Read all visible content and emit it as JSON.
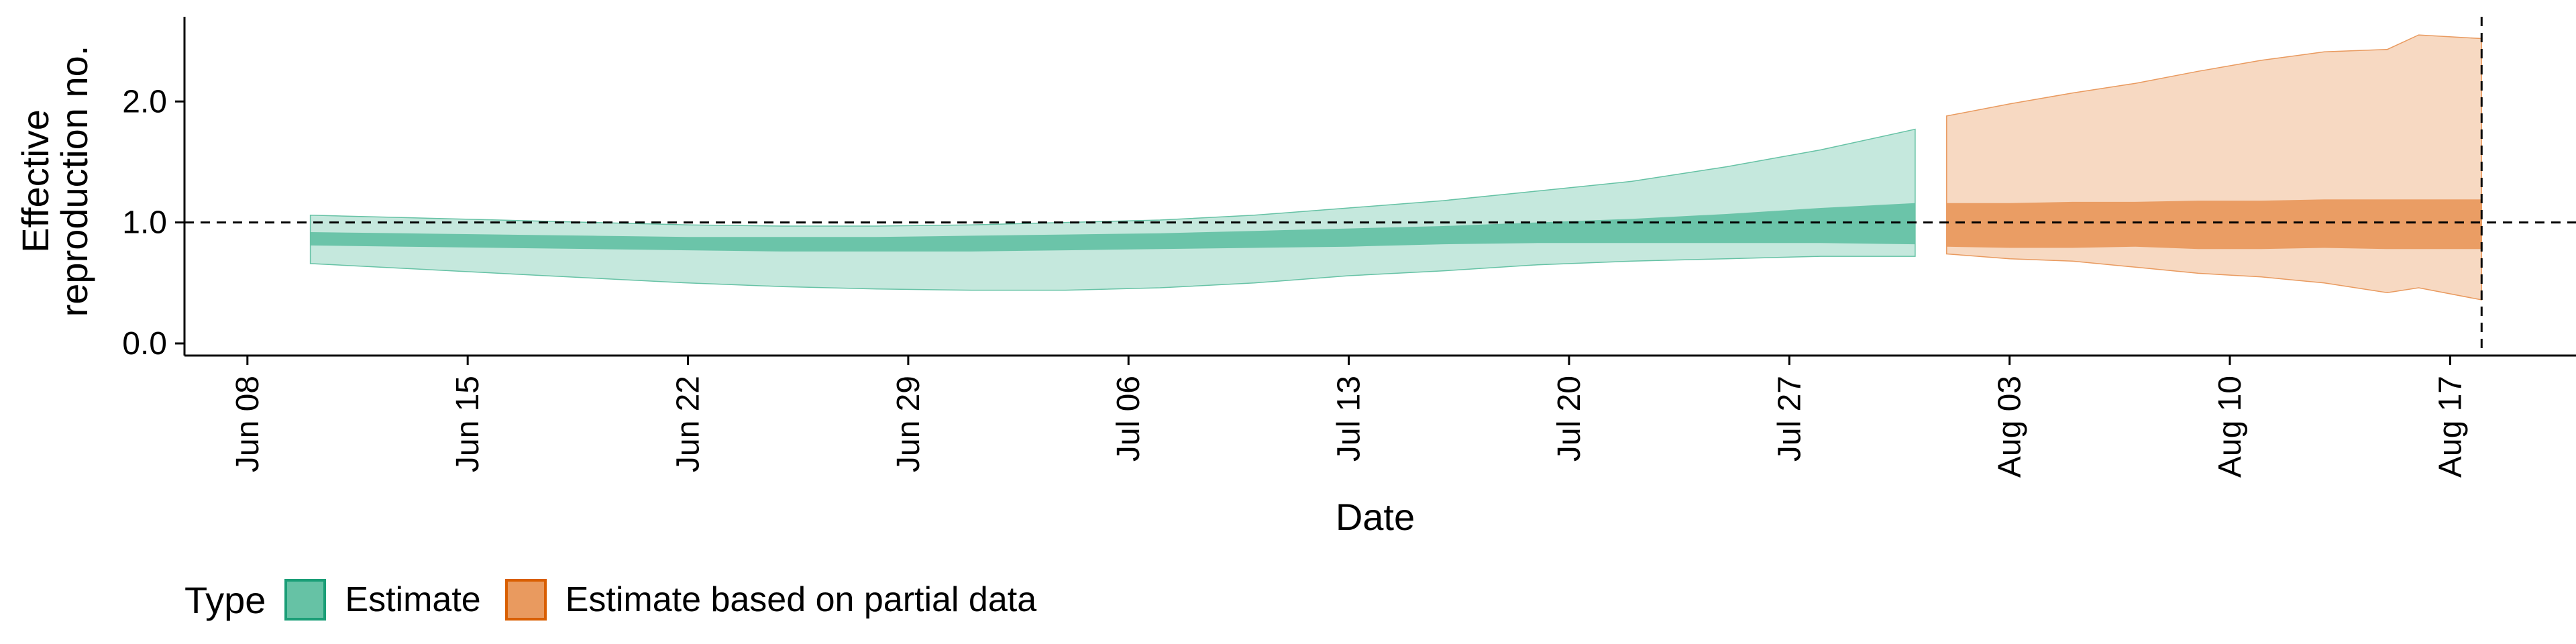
{
  "chart_data": {
    "type": "area",
    "xlabel": "Date",
    "ylabel_lines": [
      "Effective",
      "reproduction no."
    ],
    "x_ticks": [
      "Jun 08",
      "Jun 15",
      "Jun 22",
      "Jun 29",
      "Jul 06",
      "Jul 13",
      "Jul 20",
      "Jul 27",
      "Aug 03",
      "Aug 10",
      "Aug 17"
    ],
    "y_ticks": [
      "0.0",
      "1.0",
      "2.0"
    ],
    "ylim": [
      -0.1,
      2.7
    ],
    "xlim": [
      "2020-06-06",
      "2020-08-21"
    ],
    "reference_hline": 1.0,
    "reference_vline": "2020-08-18",
    "legend_title": "Type",
    "series": [
      {
        "name": "Estimate",
        "color": "#66c2a5",
        "dates": [
          "2020-06-10",
          "2020-06-13",
          "2020-06-16",
          "2020-06-19",
          "2020-06-22",
          "2020-06-25",
          "2020-06-28",
          "2020-07-01",
          "2020-07-04",
          "2020-07-07",
          "2020-07-10",
          "2020-07-13",
          "2020-07-16",
          "2020-07-19",
          "2020-07-22",
          "2020-07-25",
          "2020-07-28",
          "2020-07-31"
        ],
        "lower_90": [
          0.66,
          0.62,
          0.58,
          0.54,
          0.5,
          0.47,
          0.45,
          0.44,
          0.44,
          0.46,
          0.5,
          0.56,
          0.6,
          0.65,
          0.68,
          0.7,
          0.72,
          0.72
        ],
        "upper_90": [
          1.06,
          1.04,
          1.02,
          1.0,
          0.98,
          0.97,
          0.97,
          0.98,
          1.0,
          1.02,
          1.06,
          1.12,
          1.18,
          1.26,
          1.34,
          1.46,
          1.6,
          1.77
        ],
        "lower_50": [
          0.81,
          0.8,
          0.79,
          0.78,
          0.77,
          0.76,
          0.76,
          0.76,
          0.77,
          0.78,
          0.79,
          0.8,
          0.82,
          0.83,
          0.83,
          0.83,
          0.83,
          0.82
        ],
        "upper_50": [
          0.92,
          0.91,
          0.9,
          0.89,
          0.88,
          0.88,
          0.88,
          0.89,
          0.9,
          0.91,
          0.93,
          0.95,
          0.97,
          1.0,
          1.03,
          1.07,
          1.12,
          1.16
        ]
      },
      {
        "name": "Estimate based on partial data",
        "color": "#e99a5f",
        "dates": [
          "2020-08-01",
          "2020-08-03",
          "2020-08-05",
          "2020-08-07",
          "2020-08-09",
          "2020-08-11",
          "2020-08-13",
          "2020-08-15",
          "2020-08-16",
          "2020-08-18"
        ],
        "lower_90": [
          0.74,
          0.7,
          0.68,
          0.63,
          0.58,
          0.55,
          0.5,
          0.42,
          0.46,
          0.36
        ],
        "upper_90": [
          1.88,
          1.98,
          2.07,
          2.15,
          2.25,
          2.34,
          2.41,
          2.43,
          2.55,
          2.52
        ],
        "lower_50": [
          0.8,
          0.79,
          0.79,
          0.8,
          0.78,
          0.78,
          0.79,
          0.78,
          0.78,
          0.78
        ],
        "upper_50": [
          1.16,
          1.16,
          1.17,
          1.17,
          1.18,
          1.18,
          1.19,
          1.19,
          1.19,
          1.19
        ]
      }
    ]
  }
}
